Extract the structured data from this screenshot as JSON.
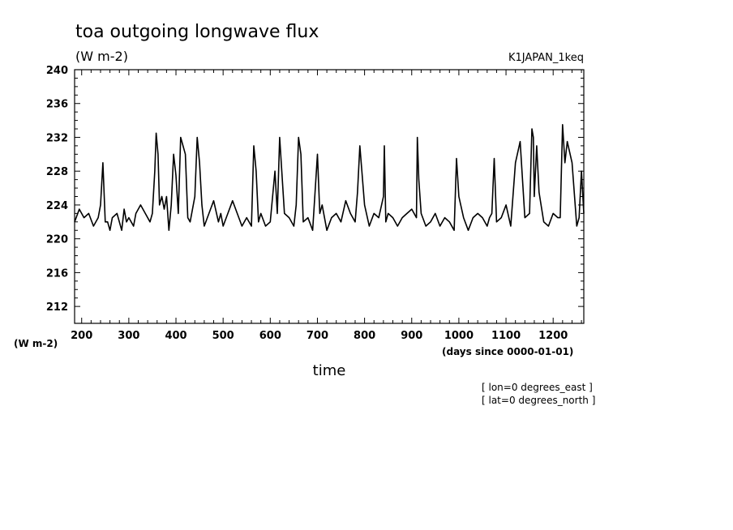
{
  "chart_data": {
    "type": "line",
    "title": "toa outgoing longwave flux",
    "units_label": "(W m-2)",
    "ylabel": "(W m-2)",
    "dataset_label": "K1JAPAN_1keq",
    "xlabel": "time",
    "x_units": "(days since 0000-01-01)",
    "xlim": [
      185,
      1265
    ],
    "ylim": [
      210,
      240
    ],
    "x_ticks": [
      "200",
      "300",
      "400",
      "500",
      "600",
      "700",
      "800",
      "900",
      "1000",
      "1100",
      "1200"
    ],
    "y_ticks": [
      "212",
      "216",
      "220",
      "224",
      "228",
      "232",
      "236",
      "240"
    ],
    "notes": [
      "[ lon=0 degrees_east ]",
      "[ lat=0 degrees_north ]"
    ],
    "grid": false,
    "series": [
      {
        "color": "#000000",
        "x": [
          185,
          195,
          205,
          215,
          225,
          235,
          240,
          245,
          250,
          255,
          260,
          265,
          275,
          285,
          290,
          295,
          300,
          305,
          310,
          315,
          325,
          335,
          345,
          350,
          355,
          358,
          362,
          365,
          370,
          375,
          380,
          385,
          390,
          395,
          400,
          405,
          410,
          415,
          420,
          425,
          430,
          440,
          445,
          450,
          455,
          460,
          470,
          480,
          490,
          495,
          500,
          510,
          520,
          530,
          540,
          550,
          560,
          565,
          570,
          575,
          580,
          590,
          600,
          610,
          615,
          620,
          630,
          640,
          650,
          655,
          660,
          665,
          670,
          680,
          690,
          700,
          705,
          710,
          720,
          730,
          740,
          750,
          760,
          770,
          780,
          785,
          790,
          800,
          810,
          820,
          830,
          840,
          842,
          845,
          850,
          860,
          870,
          880,
          890,
          900,
          910,
          912,
          915,
          920,
          930,
          940,
          950,
          960,
          970,
          980,
          990,
          995,
          1000,
          1010,
          1020,
          1030,
          1040,
          1050,
          1060,
          1065,
          1070,
          1075,
          1080,
          1090,
          1100,
          1110,
          1120,
          1130,
          1140,
          1150,
          1155,
          1158,
          1160,
          1165,
          1170,
          1180,
          1190,
          1200,
          1210,
          1215,
          1220,
          1225,
          1230,
          1240,
          1250,
          1255,
          1260,
          1265
        ],
        "y": [
          222,
          223.5,
          222.5,
          223,
          221.5,
          222.5,
          224,
          229,
          222,
          222,
          221,
          222.5,
          223,
          221,
          223.5,
          222,
          222.5,
          222,
          221.5,
          223,
          224,
          223,
          222,
          223,
          228,
          232.5,
          230,
          224,
          225,
          223.5,
          225,
          221,
          224,
          230,
          227.5,
          223,
          232,
          231,
          230,
          222.5,
          222,
          225,
          232,
          229,
          224,
          221.5,
          223,
          224.5,
          222,
          223,
          221.5,
          223,
          224.5,
          223,
          221.5,
          222.5,
          221.5,
          231,
          228,
          222,
          223,
          221.5,
          222,
          228,
          223,
          232,
          223,
          222.5,
          221.5,
          224,
          232,
          230,
          222,
          222.5,
          221,
          230,
          223,
          224,
          221,
          222.5,
          223,
          222,
          224.5,
          223,
          222,
          225.5,
          231,
          224,
          221.5,
          223,
          222.5,
          225,
          231,
          222,
          223,
          222.5,
          221.5,
          222.5,
          223,
          223.5,
          222.5,
          232,
          227,
          223,
          221.5,
          222,
          223,
          221.5,
          222.5,
          222,
          221,
          229.5,
          225,
          222.5,
          221,
          222.5,
          223,
          222.5,
          221.5,
          222.5,
          223,
          229.5,
          222,
          222.5,
          224,
          221.5,
          229,
          231.5,
          222.5,
          223,
          233,
          232,
          225,
          231,
          225.5,
          222,
          221.5,
          223,
          222.5,
          222.5,
          233.5,
          229,
          231.5,
          229,
          221.5,
          222.5,
          228,
          223
        ]
      }
    ]
  }
}
